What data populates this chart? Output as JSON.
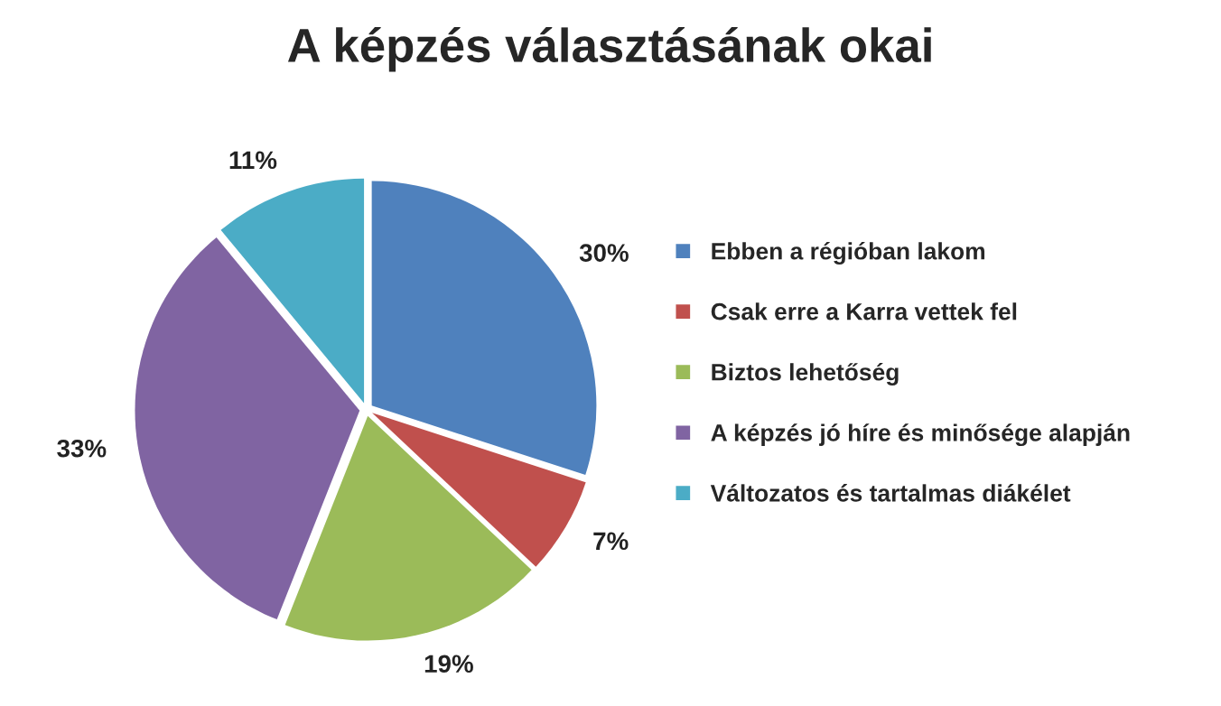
{
  "chart_data": {
    "type": "pie",
    "title": "A képzés választásának okai",
    "categories": [
      "Ebben a régióban lakom",
      "Csak erre a Karra vettek fel",
      "Biztos lehetőség",
      "A képzés jó híre és minősége alapján",
      "Változatos és tartalmas diákélet"
    ],
    "values": [
      30,
      7,
      19,
      33,
      11
    ],
    "value_labels": [
      "30%",
      "7%",
      "19%",
      "33%",
      "11%"
    ],
    "colors": [
      "#4f81bd",
      "#c0504d",
      "#9bbb59",
      "#8064a2",
      "#4bacc6"
    ],
    "legend": "right"
  }
}
